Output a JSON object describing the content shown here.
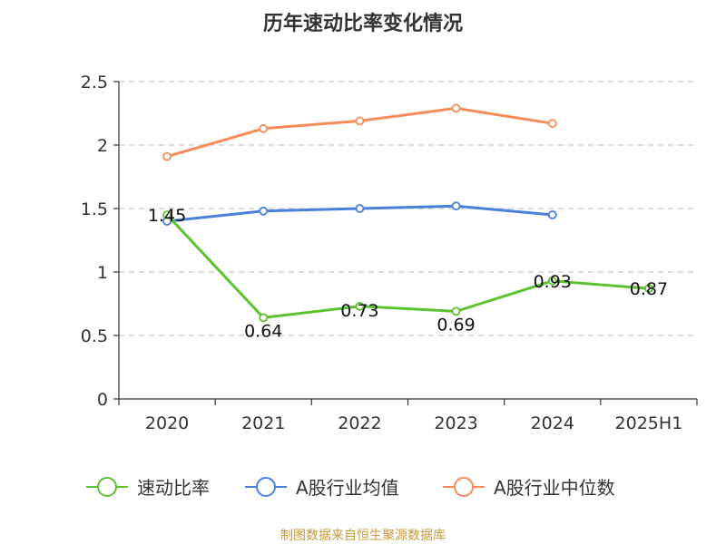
{
  "chart_data": {
    "type": "line",
    "title": "历年速动比率变化情况",
    "categories": [
      "2020",
      "2021",
      "2022",
      "2023",
      "2024",
      "2025H1"
    ],
    "ylim": [
      0,
      2.5
    ],
    "yticks": [
      "0",
      "0.5",
      "1",
      "1.5",
      "2",
      "2.5"
    ],
    "grid": true,
    "legend_position": "bottom",
    "series": [
      {
        "name": "速动比率",
        "color": "#5cc22f",
        "values": [
          1.45,
          0.64,
          0.73,
          0.69,
          0.93,
          0.87
        ],
        "labels": [
          "1.45",
          "0.64",
          "0.73",
          "0.69",
          "0.93",
          "0.87"
        ]
      },
      {
        "name": "A股行业均值",
        "color": "#4a7fdc",
        "values": [
          1.4,
          1.48,
          1.5,
          1.52,
          1.45,
          null
        ]
      },
      {
        "name": "A股行业中位数",
        "color": "#f78b5a",
        "values": [
          1.91,
          2.13,
          2.19,
          2.29,
          2.17,
          null
        ]
      }
    ]
  },
  "source": {
    "text": "制图数据来自恒生聚源数据库",
    "color": "#c89a3a"
  }
}
